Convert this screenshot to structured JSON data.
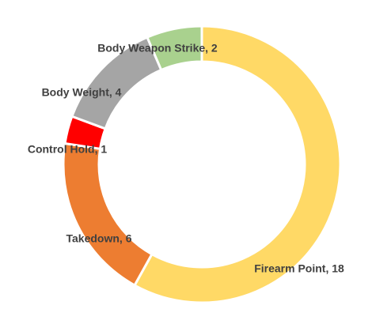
{
  "chart_data": {
    "type": "donut",
    "values": [
      18,
      6,
      1,
      4,
      2
    ],
    "value_labels": [
      "Firearm Point, 18",
      "Takedown, 6",
      "Control Hold, 1",
      "Body Weight, 4",
      "Body Weapon Strike, 2"
    ],
    "colors": [
      "#FFD966",
      "#ED7D31",
      "#FF0000",
      "#A5A5A5",
      "#A9D18E"
    ]
  }
}
